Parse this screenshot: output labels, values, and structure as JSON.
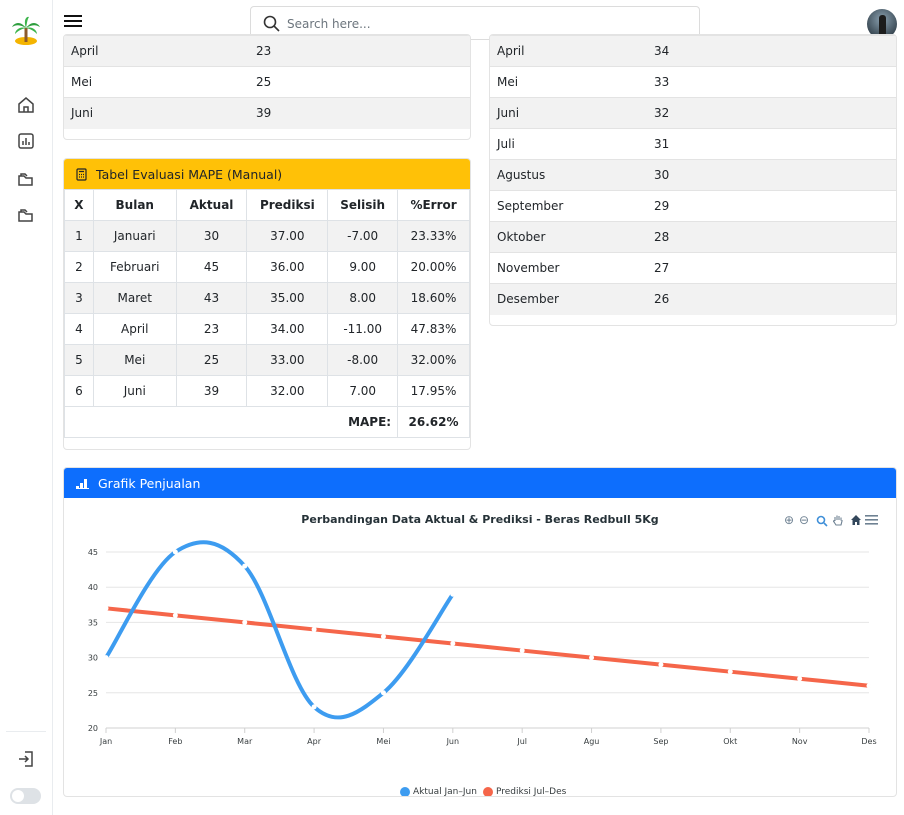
{
  "header": {
    "search_placeholder": "Search here..."
  },
  "sidebar": {
    "icons": [
      "home-icon",
      "chart-icon",
      "folder-icon",
      "folder-icon",
      "logout-icon"
    ]
  },
  "left_table": {
    "rows": [
      {
        "month": "April",
        "value": "23"
      },
      {
        "month": "Mei",
        "value": "25"
      },
      {
        "month": "Juni",
        "value": "39"
      }
    ]
  },
  "right_table": {
    "rows": [
      {
        "month": "April",
        "value": "34"
      },
      {
        "month": "Mei",
        "value": "33"
      },
      {
        "month": "Juni",
        "value": "32"
      },
      {
        "month": "Juli",
        "value": "31"
      },
      {
        "month": "Agustus",
        "value": "30"
      },
      {
        "month": "September",
        "value": "29"
      },
      {
        "month": "Oktober",
        "value": "28"
      },
      {
        "month": "November",
        "value": "27"
      },
      {
        "month": "Desember",
        "value": "26"
      }
    ]
  },
  "mape_card": {
    "title": "Tabel Evaluasi MAPE (Manual)",
    "headers": [
      "X",
      "Bulan",
      "Aktual",
      "Prediksi",
      "Selisih",
      "%Error"
    ],
    "rows": [
      [
        "1",
        "Januari",
        "30",
        "37.00",
        "-7.00",
        "23.33%"
      ],
      [
        "2",
        "Februari",
        "45",
        "36.00",
        "9.00",
        "20.00%"
      ],
      [
        "3",
        "Maret",
        "43",
        "35.00",
        "8.00",
        "18.60%"
      ],
      [
        "4",
        "April",
        "23",
        "34.00",
        "-11.00",
        "47.83%"
      ],
      [
        "5",
        "Mei",
        "25",
        "33.00",
        "-8.00",
        "32.00%"
      ],
      [
        "6",
        "Juni",
        "39",
        "32.00",
        "7.00",
        "17.95%"
      ]
    ],
    "mape_label": "MAPE:",
    "mape_value": "26.62%"
  },
  "chart_card": {
    "title": "Grafik Penjualan"
  },
  "chart_data": {
    "type": "line",
    "title": "Perbandingan Data Aktual & Prediksi - Beras Redbull 5Kg",
    "categories": [
      "Jan",
      "Feb",
      "Mar",
      "Apr",
      "Mei",
      "Jun",
      "Jul",
      "Agu",
      "Sep",
      "Okt",
      "Nov",
      "Des"
    ],
    "yticks": [
      "20",
      "25",
      "30",
      "35",
      "40",
      "45"
    ],
    "ylim": [
      20,
      45
    ],
    "grid": true,
    "legend_position": "bottom",
    "series": [
      {
        "name": "Aktual Jan–Jun",
        "color": "#3d9cf0",
        "values": [
          30,
          45,
          43,
          23,
          25,
          39,
          null,
          null,
          null,
          null,
          null,
          null
        ]
      },
      {
        "name": "Prediksi Jul–Des",
        "color": "#f5664a",
        "values": [
          37,
          36,
          35,
          34,
          33,
          32,
          31,
          30,
          29,
          28,
          27,
          26
        ]
      }
    ]
  }
}
